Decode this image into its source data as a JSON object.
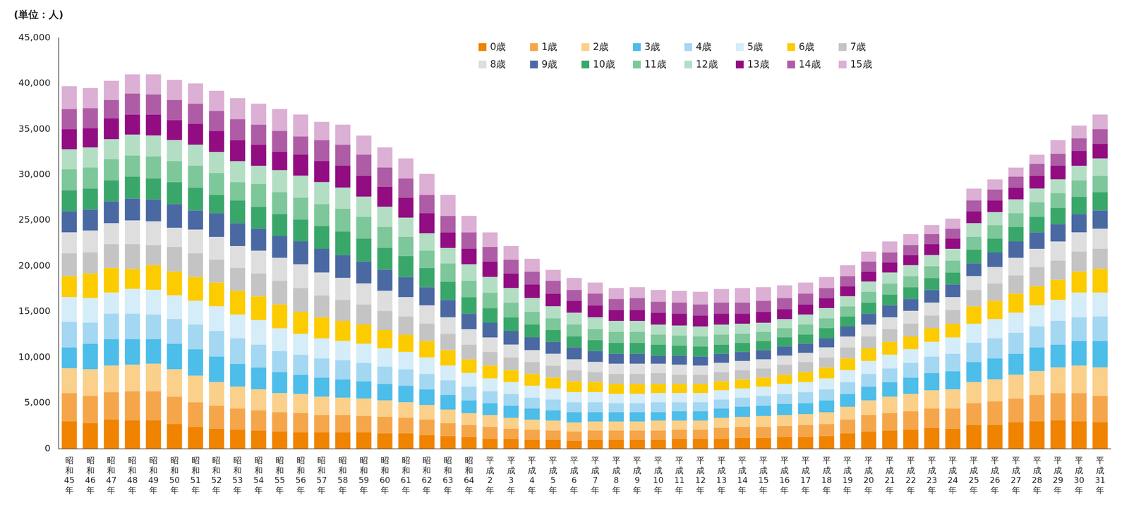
{
  "chart_data": {
    "type": "bar",
    "stacked": true,
    "ylabel": "(単位：人)",
    "grid": false,
    "legend": "top-right",
    "ylim": [
      0,
      45000
    ],
    "yticks": [
      0,
      {
        "value": 5000,
        "label": "5,000"
      },
      {
        "value": 10000,
        "label": "10,000"
      },
      {
        "value": 15000,
        "label": "15,000"
      },
      {
        "value": 20000,
        "label": "20,000"
      },
      {
        "value": 25000,
        "label": "25,000"
      },
      {
        "value": 30000,
        "label": "30,000"
      },
      {
        "value": 35000,
        "label": "35,000"
      },
      {
        "value": 40000,
        "label": "40,000"
      },
      {
        "value": 45000,
        "label": "45,000"
      }
    ],
    "categories": [
      "昭和45年",
      "昭和46年",
      "昭和47年",
      "昭和48年",
      "昭和49年",
      "昭和50年",
      "昭和51年",
      "昭和52年",
      "昭和53年",
      "昭和54年",
      "昭和55年",
      "昭和56年",
      "昭和57年",
      "昭和58年",
      "昭和59年",
      "昭和60年",
      "昭和61年",
      "昭和62年",
      "昭和63年",
      "昭和64年",
      "平成2年",
      "平成3年",
      "平成4年",
      "平成5年",
      "平成6年",
      "平成7年",
      "平成8年",
      "平成9年",
      "平成10年",
      "平成11年",
      "平成12年",
      "平成13年",
      "平成14年",
      "平成15年",
      "平成16年",
      "平成17年",
      "平成18年",
      "平成19年",
      "平成20年",
      "平成21年",
      "平成22年",
      "平成23年",
      "平成24年",
      "平成25年",
      "平成26年",
      "平成27年",
      "平成28年",
      "平成29年",
      "平成30年",
      "平成31年"
    ],
    "series": [
      {
        "name": "0歳",
        "color": "#f08300",
        "values": [
          3000,
          2800,
          3200,
          3100,
          3100,
          2700,
          2400,
          2200,
          2100,
          2000,
          1900,
          1800,
          1800,
          1800,
          1800,
          1700,
          1700,
          1500,
          1400,
          1300,
          1100,
          1100,
          1000,
          1000,
          900,
          1000,
          1000,
          1000,
          1000,
          1100,
          1100,
          1100,
          1200,
          1200,
          1300,
          1300,
          1400,
          1700,
          1900,
          2000,
          2100,
          2300,
          2200,
          2600,
          2600,
          2900,
          3000,
          3100,
          3000,
          2900
        ]
      },
      {
        "name": "1歳",
        "color": "#f5a64a",
        "values": [
          3100,
          3000,
          3000,
          3200,
          3200,
          3000,
          2700,
          2500,
          2300,
          2200,
          2100,
          2100,
          1900,
          1900,
          1800,
          1800,
          1700,
          1700,
          1400,
          1300,
          1300,
          1100,
          1100,
          1000,
          1000,
          1000,
          1000,
          1000,
          1000,
          1000,
          1000,
          1200,
          1200,
          1200,
          1200,
          1300,
          1300,
          1500,
          1800,
          1900,
          2000,
          2100,
          2200,
          2400,
          2600,
          2600,
          2900,
          3000,
          3100,
          2900
        ]
      },
      {
        "name": "2歳",
        "color": "#fad08a",
        "values": [
          2700,
          2900,
          2900,
          2900,
          3000,
          3000,
          2900,
          2600,
          2400,
          2300,
          2100,
          2100,
          2000,
          1900,
          1900,
          1800,
          1700,
          1600,
          1500,
          1300,
          1300,
          1200,
          1100,
          1100,
          1000,
          1000,
          1000,
          1000,
          1100,
          1000,
          1000,
          1100,
          1100,
          1200,
          1200,
          1200,
          1300,
          1400,
          1600,
          1800,
          1900,
          2000,
          2100,
          2300,
          2400,
          2600,
          2600,
          2800,
          3000,
          3100
        ]
      },
      {
        "name": "3歳",
        "color": "#4dbde9",
        "values": [
          2300,
          2800,
          2900,
          2800,
          2700,
          2800,
          2900,
          2800,
          2500,
          2400,
          2300,
          2100,
          2100,
          2000,
          1900,
          1800,
          1800,
          1700,
          1600,
          1400,
          1300,
          1300,
          1200,
          1100,
          1100,
          1000,
          1000,
          1000,
          900,
          1000,
          1000,
          1000,
          1100,
          1100,
          1200,
          1200,
          1300,
          1400,
          1500,
          1600,
          1800,
          1900,
          2000,
          2200,
          2300,
          2300,
          2600,
          2500,
          2700,
          2900
        ]
      },
      {
        "name": "4歳",
        "color": "#a3d7f2",
        "values": [
          2800,
          2300,
          2800,
          2800,
          2700,
          2700,
          2700,
          2800,
          2800,
          2500,
          2300,
          2200,
          2100,
          2100,
          2000,
          1900,
          1800,
          1700,
          1600,
          1500,
          1300,
          1300,
          1200,
          1200,
          1100,
          1100,
          1000,
          1000,
          1100,
          1000,
          1000,
          1000,
          1000,
          1100,
          1100,
          1200,
          1200,
          1300,
          1400,
          1500,
          1600,
          1800,
          1900,
          2100,
          2200,
          2300,
          2300,
          2600,
          2600,
          2700
        ]
      },
      {
        "name": "5歳",
        "color": "#d5ecf9",
        "values": [
          2700,
          2700,
          2300,
          2700,
          2700,
          2600,
          2600,
          2700,
          2600,
          2700,
          2500,
          2300,
          2200,
          2100,
          2100,
          2000,
          1900,
          1800,
          1600,
          1500,
          1400,
          1300,
          1300,
          1200,
          1100,
          1100,
          1000,
          1000,
          1000,
          1000,
          1000,
          1000,
          1000,
          1000,
          1100,
          1100,
          1200,
          1300,
          1400,
          1500,
          1500,
          1600,
          1800,
          2100,
          2100,
          2200,
          2300,
          2300,
          2700,
          2600
        ]
      },
      {
        "name": "6歳",
        "color": "#fccb00",
        "values": [
          2300,
          2700,
          2700,
          2200,
          2700,
          2600,
          2600,
          2600,
          2600,
          2600,
          2600,
          2400,
          2300,
          2200,
          2100,
          2000,
          1900,
          1800,
          1700,
          1500,
          1400,
          1300,
          1300,
          1200,
          1200,
          1100,
          1100,
          1100,
          1000,
          1000,
          1000,
          1000,
          1000,
          1000,
          1000,
          1100,
          1200,
          1300,
          1400,
          1400,
          1400,
          1500,
          1500,
          1900,
          2000,
          2100,
          2100,
          2200,
          2300,
          2600
        ]
      },
      {
        "name": "7歳",
        "color": "#c4c4c4",
        "values": [
          2500,
          2300,
          2600,
          2700,
          2200,
          2700,
          2600,
          2500,
          2500,
          2500,
          2600,
          2600,
          2400,
          2300,
          2200,
          2100,
          2000,
          1900,
          1800,
          1600,
          1500,
          1400,
          1300,
          1300,
          1200,
          1100,
          1100,
          1100,
          1200,
          1000,
          1000,
          1000,
          1000,
          1000,
          1100,
          1100,
          1100,
          1200,
          1300,
          1400,
          1400,
          1400,
          1500,
          1800,
          1900,
          2000,
          2100,
          2100,
          2200,
          2200
        ]
      },
      {
        "name": "8歳",
        "color": "#dedede",
        "values": [
          2300,
          2400,
          2300,
          2600,
          2600,
          2100,
          2600,
          2500,
          2400,
          2500,
          2500,
          2600,
          2500,
          2400,
          2300,
          2200,
          2100,
          2000,
          1800,
          1700,
          1600,
          1400,
          1300,
          1300,
          1200,
          1100,
          1100,
          1100,
          1000,
          1100,
          1000,
          1000,
          1000,
          1000,
          1000,
          1000,
          1100,
          1200,
          1300,
          1300,
          1400,
          1400,
          1400,
          1500,
          1800,
          1900,
          2000,
          2100,
          2100,
          2200
        ]
      },
      {
        "name": "9歳",
        "color": "#4a69a3",
        "values": [
          2300,
          2300,
          2400,
          2400,
          2400,
          2600,
          2100,
          2600,
          2500,
          2400,
          2400,
          2500,
          2600,
          2500,
          2400,
          2300,
          2200,
          2000,
          1900,
          1700,
          1600,
          1500,
          1400,
          1300,
          1300,
          1200,
          1100,
          1100,
          900,
          1000,
          1000,
          1000,
          1000,
          1000,
          1000,
          1000,
          1000,
          1100,
          1200,
          1300,
          1300,
          1400,
          1400,
          1400,
          1600,
          1800,
          1800,
          1900,
          2000,
          2000
        ]
      },
      {
        "name": "10歳",
        "color": "#3aa76a",
        "values": [
          2300,
          2300,
          2300,
          2400,
          2300,
          2400,
          2500,
          2000,
          2500,
          2400,
          2400,
          2400,
          2500,
          2600,
          2500,
          2400,
          2300,
          2100,
          2000,
          1800,
          1600,
          1500,
          1400,
          1300,
          1200,
          1200,
          1200,
          1200,
          1200,
          1100,
          1100,
          1000,
          1000,
          1000,
          1000,
          1000,
          1100,
          1100,
          1200,
          1200,
          1300,
          1300,
          1300,
          1500,
          1500,
          1600,
          1700,
          1800,
          1900,
          2000
        ]
      },
      {
        "name": "11歳",
        "color": "#7dc79a",
        "values": [
          2300,
          2300,
          2300,
          2300,
          2400,
          2300,
          2400,
          2400,
          2000,
          2500,
          2400,
          2400,
          2400,
          2500,
          2400,
          2300,
          2100,
          1900,
          2000,
          1800,
          1700,
          1600,
          1400,
          1300,
          1300,
          1200,
          1200,
          1200,
          1100,
          1100,
          1100,
          1100,
          1000,
          1000,
          1000,
          1100,
          1100,
          1100,
          1200,
          1200,
          1200,
          1300,
          1300,
          1400,
          1500,
          1500,
          1600,
          1600,
          1800,
          1800
        ]
      },
      {
        "name": "12歳",
        "color": "#b3dec4",
        "values": [
          2200,
          2200,
          2200,
          2300,
          2300,
          2300,
          2300,
          2300,
          2300,
          2000,
          2400,
          2400,
          2400,
          2300,
          2200,
          2200,
          2100,
          1900,
          1700,
          1800,
          1700,
          1600,
          1500,
          1300,
          1300,
          1300,
          1200,
          1200,
          1100,
          1100,
          1100,
          1100,
          1100,
          1000,
          1000,
          1100,
          1100,
          1100,
          1100,
          1200,
          1200,
          1200,
          1300,
          1500,
          1400,
          1500,
          1500,
          1500,
          1600,
          1900
        ]
      },
      {
        "name": "13歳",
        "color": "#920c82",
        "values": [
          2200,
          2100,
          2300,
          2200,
          2300,
          2200,
          2300,
          2300,
          2300,
          2300,
          2000,
          2300,
          2300,
          2400,
          2300,
          2200,
          2200,
          2200,
          1700,
          1700,
          1700,
          1600,
          1500,
          1400,
          1300,
          1300,
          1200,
          1200,
          1300,
          1300,
          1200,
          1200,
          1100,
          1200,
          1100,
          1100,
          1100,
          1100,
          1100,
          1100,
          1100,
          1200,
          1100,
          1300,
          1300,
          1300,
          1400,
          1500,
          1600,
          1600
        ]
      },
      {
        "name": "14歳",
        "color": "#ae5ca5",
        "values": [
          2200,
          2200,
          2000,
          2300,
          2200,
          2200,
          2200,
          2200,
          2300,
          2200,
          2300,
          2000,
          2300,
          2300,
          2300,
          2100,
          2100,
          2000,
          1800,
          1800,
          1600,
          1500,
          1400,
          1400,
          1200,
          1300,
          1200,
          1300,
          1200,
          1200,
          1200,
          1200,
          1200,
          1200,
          1200,
          1200,
          1100,
          1100,
          1100,
          1100,
          1100,
          1100,
          1100,
          1200,
          1200,
          1200,
          1300,
          1300,
          1400,
          1600
        ]
      },
      {
        "name": "15歳",
        "color": "#dcafd4",
        "values": [
          2500,
          2200,
          2100,
          2100,
          2200,
          2200,
          2200,
          2200,
          2300,
          2300,
          2400,
          2400,
          2000,
          2200,
          2100,
          2200,
          2200,
          2300,
          2300,
          1800,
          1600,
          1500,
          1400,
          1200,
          1300,
          1200,
          1200,
          1200,
          1300,
          1300,
          1400,
          1500,
          1600,
          1500,
          1400,
          1200,
          1200,
          1200,
          1100,
          1200,
          1200,
          1000,
          1100,
          1300,
          1100,
          1000,
          1000,
          1500,
          1400,
          1600
        ]
      }
    ]
  }
}
